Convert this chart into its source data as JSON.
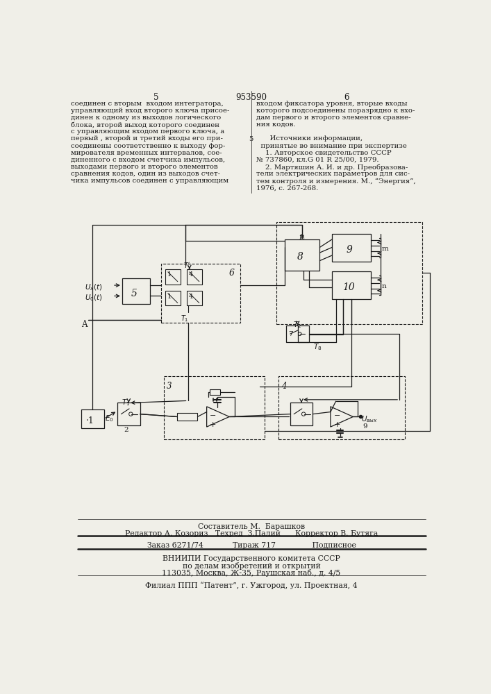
{
  "bg_color": "#f0efe8",
  "patent_number": "953590",
  "left_text": [
    "соединен с вторым  входом интегратора,",
    "управляющий вход второго ключа присое-",
    "динен к одному из выходов логического",
    "блока, второй выход которого соединен",
    "с управляющим входом первого ключа, а",
    "первый , второй и третий входы его при-",
    "соединены соответственно к выходу фор-",
    "мирователя временных интервалов, сое-",
    "диненного с входом счетчика импульсов,",
    "выходами первого и второго элементов",
    "сравнения кодов, один из выходов счет-",
    "чика импульсов соединен с управляющим"
  ],
  "right_text_lines": [
    "входом фиксатора уровня, вторые входы",
    "которого подсоединены поразрядно к вхо-",
    "дам первого и второго элементов сравне-",
    "ния кодов.",
    "",
    "      Источники информации,",
    "  принятые во внимание при экспертизе",
    "    1. Авторское свидетельство СССР",
    "№ 737860, кл.G 01 R 25/00, 1979.",
    "    2. Мартяшин А. И. и др. Преобразова-",
    "тели электрических параметров для сис-",
    "тем контроля и измерения. М., “Энергия”,",
    "1976, с. 267-268."
  ],
  "footer_line1": "Составитель М.  Барашков",
  "footer_line2": "Редактор А. Козориз   Техред  З.Палий      Корректор В. Бутяга",
  "footer_line3": "Заказ 6271/74            Тираж 717               Подписное",
  "footer_line4": "ВНИИПИ Государственного комитета СССР",
  "footer_line5": "по делам изобретений и открытий",
  "footer_line6": "113035, Москва, Ж-35, Раушская наб., д. 4/5",
  "footer_line7": "Филиал ППП “Патент”, г. Ужгород, ул. Проектная, 4"
}
